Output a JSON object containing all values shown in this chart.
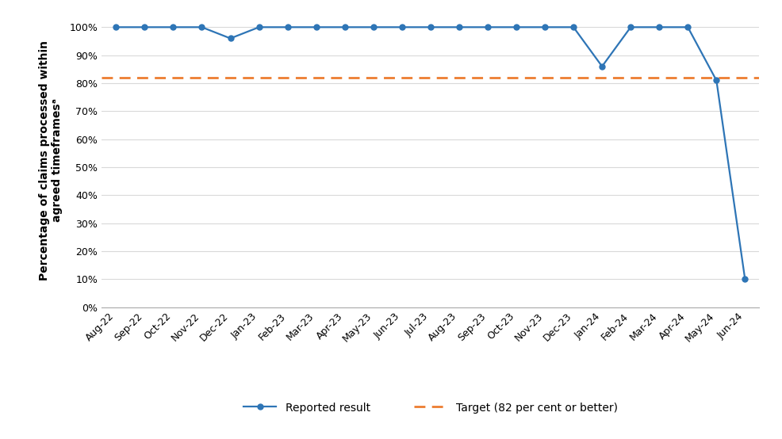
{
  "months": [
    "Aug-22",
    "Sep-22",
    "Oct-22",
    "Nov-22",
    "Dec-22",
    "Jan-23",
    "Feb-23",
    "Mar-23",
    "Apr-23",
    "May-23",
    "Jun-23",
    "Jul-23",
    "Aug-23",
    "Sep-23",
    "Oct-23",
    "Nov-23",
    "Dec-23",
    "Jan-24",
    "Feb-24",
    "Mar-24",
    "Apr-24",
    "May-24",
    "Jun-24"
  ],
  "values": [
    100,
    100,
    100,
    100,
    96,
    100,
    100,
    100,
    100,
    100,
    100,
    100,
    100,
    100,
    100,
    100,
    100,
    86,
    100,
    100,
    100,
    81,
    10
  ],
  "target": 82,
  "line_color": "#2E75B6",
  "target_color": "#ED7D31",
  "ylabel": "Percentage of claims processed within\nagreed timeframesᵃ",
  "ylim": [
    0,
    105
  ],
  "yticks": [
    0,
    10,
    20,
    30,
    40,
    50,
    60,
    70,
    80,
    90,
    100
  ],
  "legend_result": "Reported result",
  "legend_target": "Target (82 per cent or better)",
  "bg_color": "#ffffff",
  "grid_color": "#d9d9d9",
  "marker": "o",
  "marker_size": 5,
  "line_width": 1.6,
  "target_linewidth": 2.0,
  "label_fontsize": 10,
  "tick_fontsize": 9,
  "legend_fontsize": 10
}
